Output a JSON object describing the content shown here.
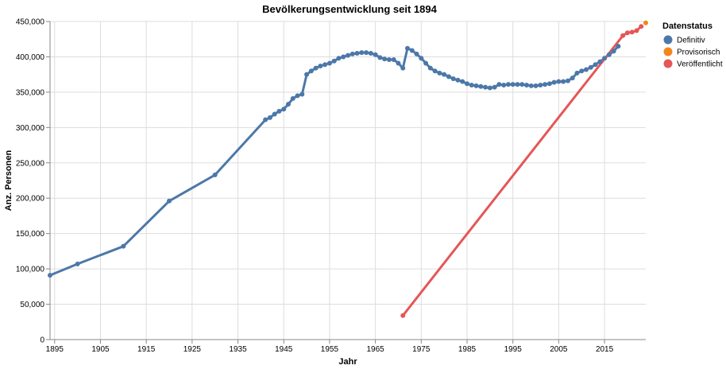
{
  "chart_data": {
    "type": "line",
    "title": "Bevölkerungsentwicklung seit 1894",
    "xlabel": "Jahr",
    "ylabel": "Anz. Personen",
    "xlim": [
      1894,
      2024
    ],
    "ylim": [
      0,
      450000
    ],
    "x_ticks": [
      1895,
      1905,
      1915,
      1925,
      1935,
      1945,
      1955,
      1965,
      1975,
      1985,
      1995,
      2005,
      2015
    ],
    "y_ticks": [
      0,
      50000,
      100000,
      150000,
      200000,
      250000,
      300000,
      350000,
      400000,
      450000
    ],
    "y_tick_labels": [
      "0",
      "50,000",
      "100,000",
      "150,000",
      "200,000",
      "250,000",
      "300,000",
      "350,000",
      "400,000",
      "450,000"
    ],
    "grid": true,
    "legend_position": "top-right",
    "legend_title": "Datenstatus",
    "series": [
      {
        "name": "Definitiv",
        "color": "#4c78a8",
        "x": [
          1894,
          1900,
          1910,
          1920,
          1930,
          1941,
          1942,
          1943,
          1944,
          1945,
          1946,
          1947,
          1948,
          1949,
          1950,
          1951,
          1952,
          1953,
          1954,
          1955,
          1956,
          1957,
          1958,
          1959,
          1960,
          1961,
          1962,
          1963,
          1964,
          1965,
          1966,
          1967,
          1968,
          1969,
          1970,
          1971,
          1972,
          1973,
          1974,
          1975,
          1976,
          1977,
          1978,
          1979,
          1980,
          1981,
          1982,
          1983,
          1984,
          1985,
          1986,
          1987,
          1988,
          1989,
          1990,
          1991,
          1992,
          1993,
          1994,
          1995,
          1996,
          1997,
          1998,
          1999,
          2000,
          2001,
          2002,
          2003,
          2004,
          2005,
          2006,
          2007,
          2008,
          2009,
          2010,
          2011,
          2012,
          2013,
          2014,
          2015,
          2016,
          2017,
          2018
        ],
        "y": [
          91000,
          107000,
          132000,
          196000,
          233000,
          311000,
          314000,
          319000,
          323000,
          326000,
          333000,
          341000,
          345000,
          347000,
          375000,
          380000,
          384000,
          387000,
          389000,
          391000,
          394000,
          398000,
          400000,
          402000,
          404000,
          405000,
          406000,
          406000,
          405000,
          403000,
          399000,
          397000,
          396000,
          396000,
          391000,
          384000,
          412000,
          409000,
          404000,
          398000,
          391000,
          384000,
          380000,
          377000,
          375000,
          372000,
          369000,
          367000,
          365000,
          362000,
          360000,
          359000,
          358000,
          357000,
          356000,
          357000,
          361000,
          360000,
          361000,
          361000,
          361000,
          361000,
          360000,
          359000,
          359000,
          360000,
          361000,
          362000,
          364000,
          365000,
          365000,
          366000,
          370000,
          377000,
          380000,
          382000,
          385000,
          389000,
          393000,
          398000,
          403000,
          408000,
          415000
        ]
      },
      {
        "name": "Provisorisch",
        "color": "#f58518",
        "x": [
          2024
        ],
        "y": [
          448000
        ]
      },
      {
        "name": "Veröffentlicht",
        "color": "#e45756",
        "x": [
          1971,
          2019,
          2020,
          2021,
          2022,
          2023
        ],
        "y": [
          34000,
          430000,
          434000,
          435000,
          437000,
          443000
        ]
      }
    ]
  }
}
